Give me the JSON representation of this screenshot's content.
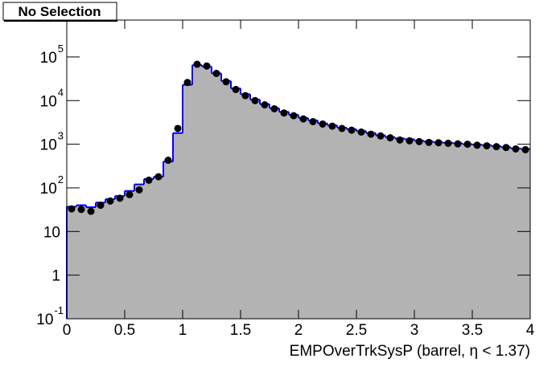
{
  "button": {
    "label": "No Selection"
  },
  "chart_data": {
    "type": "histogram",
    "x_label": "EMPOverTrkSysP (barrel,   η < 1.37)",
    "bins": [
      0,
      0.0833,
      0.1667,
      0.25,
      0.3333,
      0.4167,
      0.5,
      0.5833,
      0.6667,
      0.75,
      0.8333,
      0.9167,
      1,
      1.0833,
      1.1667,
      1.25,
      1.3333,
      1.4167,
      1.5,
      1.5833,
      1.6667,
      1.75,
      1.8333,
      1.9167,
      2,
      2.0833,
      2.1667,
      2.25,
      2.3333,
      2.4167,
      2.5,
      2.5833,
      2.6667,
      2.75,
      2.8333,
      2.9167,
      3,
      3.0833,
      3.1667,
      3.25,
      3.3333,
      3.4167,
      3.5,
      3.5833,
      3.6667,
      3.75,
      3.8333,
      3.9167,
      4
    ],
    "series": [
      {
        "style": "filled-step",
        "color": "#0000ff",
        "fill": "#b3b3b3",
        "values": [
          37,
          40,
          36,
          46,
          55,
          65,
          85,
          120,
          160,
          180,
          400,
          1800,
          23000,
          65000,
          60000,
          42000,
          28000,
          19000,
          14000,
          10500,
          8300,
          6700,
          5500,
          4700,
          4000,
          3500,
          3000,
          2700,
          2400,
          2200,
          2000,
          1800,
          1600,
          1450,
          1350,
          1300,
          1200,
          1150,
          1100,
          1080,
          1050,
          1000,
          980,
          950,
          900,
          850,
          800,
          780
        ]
      },
      {
        "style": "markers",
        "color": "#000000",
        "values": [
          33,
          32,
          29,
          40,
          50,
          58,
          70,
          90,
          150,
          180,
          430,
          2300,
          26000,
          68000,
          62000,
          42000,
          27000,
          18000,
          13000,
          10000,
          8000,
          6500,
          5200,
          4500,
          3800,
          3300,
          2900,
          2600,
          2300,
          2100,
          1900,
          1700,
          1550,
          1400,
          1250,
          1200,
          1150,
          1100,
          1080,
          1050,
          1020,
          1000,
          950,
          920,
          880,
          840,
          780,
          750
        ]
      }
    ],
    "xlim": [
      0,
      4
    ],
    "xticks": [
      0,
      0.5,
      1,
      1.5,
      2,
      2.5,
      3,
      3.5,
      4
    ],
    "ylim": [
      0.1,
      700000
    ],
    "log_y": true,
    "yticks": [
      {
        "value": 0.1,
        "label": "10",
        "exponent": "-1"
      },
      1,
      10,
      {
        "value": 100,
        "label": "10",
        "exponent": "2"
      },
      {
        "value": 1000,
        "label": "10",
        "exponent": "3"
      },
      {
        "value": 10000,
        "label": "10",
        "exponent": "4"
      },
      {
        "value": 100000,
        "label": "10",
        "exponent": "5"
      }
    ]
  }
}
